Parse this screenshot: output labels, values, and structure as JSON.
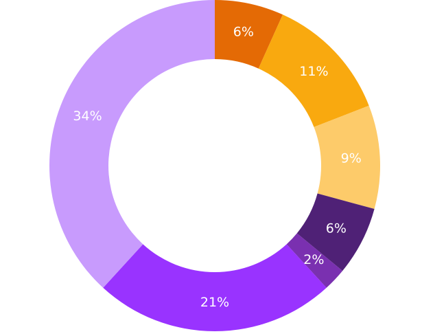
{
  "chart_data": {
    "type": "pie",
    "variant": "donut",
    "title": "",
    "legend": "none",
    "slices": [
      {
        "label": "6%",
        "value": 6,
        "color": "#E46A05"
      },
      {
        "label": "11%",
        "value": 11,
        "color": "#F9A90F"
      },
      {
        "label": "9%",
        "value": 9,
        "color": "#FDCB6A"
      },
      {
        "label": "6%",
        "value": 6,
        "color": "#4F2176"
      },
      {
        "label": "2%",
        "value": 2,
        "color": "#7A30B0"
      },
      {
        "label": "21%",
        "value": 21,
        "color": "#9933FF"
      },
      {
        "label": "34%",
        "value": 34,
        "color": "#C89BFD"
      }
    ],
    "start_angle_deg": 0,
    "direction": "clockwise"
  }
}
